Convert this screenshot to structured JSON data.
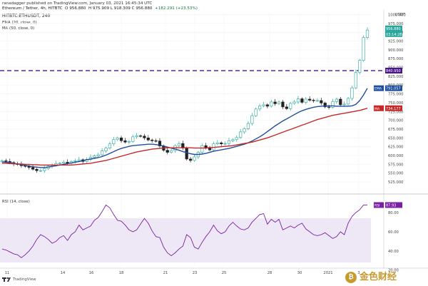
{
  "header": {
    "published": "ranadagger published on TradingView.com, January 03, 2021 16:45:34 UTC",
    "pair_line_prefix": "Ethereum / Tether, 4h, HITBTC",
    "ohlc_open_label": "O",
    "ohlc": "956.880",
    "change": "+182.291 (+23.53%)",
    "ohlc_rest": "H 975.909  L 918.309  C 956.880",
    "symbol": "HITBTC:ETHUSDT, 240",
    "ema_label": "EMA (20, close, 0)",
    "ma_label": "MA (50, close, 0)",
    "rsi_label": "RSI (14, close)",
    "usdt_label": "USDT"
  },
  "price_axis": {
    "ticks": [
      "1000.000",
      "975.000",
      "950.000",
      "925.000",
      "900.000",
      "875.000",
      "850.000",
      "825.000",
      "800.000",
      "775.000",
      "750.000",
      "725.000",
      "700.000",
      "675.000",
      "650.000",
      "625.000",
      "600.000",
      "575.000",
      "550.000",
      "525.000"
    ],
    "last_price_tag": "956.880",
    "countdown_tag": "03:14:28",
    "level_tag": "840.950",
    "ema_tag": "EMA",
    "ema_value": "791.057",
    "ma_tag": "MA",
    "ma_value": "734.177"
  },
  "rsi_axis": {
    "ticks": [
      "80.00",
      "60.00",
      "40.00",
      "20.00"
    ],
    "rsi_tag": "RSI",
    "rsi_value": "87.93"
  },
  "date_axis": {
    "ticks": [
      "11",
      "14",
      "16",
      "18",
      "21",
      "23",
      "25",
      "28",
      "30",
      "2021",
      "3"
    ]
  },
  "footer": {
    "brand": "TradingView"
  },
  "watermark": {
    "text": "金色财经"
  },
  "colors": {
    "up": "#26a69a",
    "down": "#222222",
    "ema": "#1f4e9c",
    "ma": "#c62828",
    "level": "#4a148c",
    "rsi": "#7b1fa2",
    "rsi_band": "#ede7f6"
  },
  "chart_data": [
    {
      "type": "candlestick",
      "title": "Ethereum / Tether, 4h, HITBTC",
      "ylim": [
        515,
        1005
      ],
      "horizontal_level": 840.95,
      "series": [
        {
          "name": "EMA (20, close, 0)",
          "values": [
            582,
            581,
            580,
            578,
            576,
            574,
            572,
            570,
            568,
            567,
            566,
            566,
            567,
            569,
            571,
            573,
            575,
            577,
            579,
            581,
            583,
            585,
            588,
            590,
            592,
            594,
            597,
            601,
            606,
            611,
            616,
            620,
            623,
            626,
            628,
            629,
            630,
            631,
            632,
            632,
            631,
            629,
            627,
            624,
            621,
            618,
            615,
            611,
            608,
            605,
            603,
            603,
            604,
            606,
            609,
            612,
            614,
            616,
            618,
            620,
            623,
            626,
            629,
            632,
            636,
            641,
            647,
            653,
            660,
            668,
            676,
            684,
            691,
            698,
            704,
            710,
            716,
            722,
            727,
            731,
            734,
            737,
            739,
            740,
            741,
            741,
            741,
            740,
            740,
            740,
            740,
            741,
            745,
            756,
            772,
            791
          ]
        },
        {
          "name": "MA (50, close, 0)",
          "values": [
            578,
            578,
            577,
            577,
            576,
            576,
            575,
            575,
            574,
            574,
            573,
            573,
            573,
            573,
            573,
            573,
            573,
            573,
            573,
            574,
            575,
            576,
            577,
            578,
            580,
            582,
            584,
            586,
            589,
            592,
            595,
            598,
            601,
            604,
            607,
            610,
            612,
            614,
            616,
            618,
            619,
            620,
            621,
            622,
            622,
            622,
            622,
            622,
            622,
            622,
            621,
            621,
            621,
            621,
            622,
            623,
            624,
            625,
            626,
            627,
            628,
            630,
            632,
            634,
            636,
            638,
            641,
            644,
            647,
            650,
            654,
            658,
            662,
            666,
            670,
            674,
            678,
            682,
            686,
            690,
            694,
            698,
            702,
            705,
            708,
            711,
            714,
            716,
            718,
            720,
            722,
            724,
            726,
            728,
            731,
            734
          ]
        }
      ],
      "candles_close": [
        585,
        583,
        580,
        576,
        575,
        571,
        569,
        566,
        561,
        557,
        557,
        563,
        570,
        572,
        577,
        578,
        581,
        578,
        583,
        585,
        588,
        583,
        589,
        595,
        599,
        602,
        613,
        621,
        633,
        645,
        650,
        642,
        638,
        640,
        653,
        656,
        655,
        650,
        644,
        642,
        641,
        627,
        615,
        609,
        614,
        628,
        634,
        621,
        590,
        586,
        596,
        609,
        628,
        623,
        616,
        633,
        636,
        633,
        634,
        642,
        645,
        651,
        667,
        676,
        691,
        713,
        732,
        741,
        744,
        740,
        752,
        747,
        752,
        738,
        733,
        748,
        752,
        761,
        751,
        760,
        757,
        756,
        756,
        749,
        738,
        737,
        753,
        760,
        744,
        746,
        762,
        792,
        836,
        870,
        935,
        956
      ]
    },
    {
      "type": "line",
      "title": "RSI (14, close)",
      "ylim": [
        25,
        95
      ],
      "series": [
        {
          "name": "RSI",
          "values": [
            42,
            41,
            39,
            37,
            36,
            33,
            36,
            40,
            45,
            52,
            57,
            55,
            52,
            48,
            50,
            54,
            56,
            51,
            57,
            60,
            67,
            62,
            64,
            66,
            72,
            75,
            81,
            88,
            85,
            78,
            72,
            71,
            67,
            62,
            60,
            62,
            68,
            74,
            69,
            61,
            55,
            54,
            44,
            38,
            35,
            38,
            42,
            45,
            57,
            54,
            44,
            42,
            49,
            55,
            60,
            67,
            61,
            58,
            60,
            66,
            70,
            66,
            63,
            62,
            64,
            70,
            74,
            78,
            79,
            68,
            73,
            70,
            73,
            62,
            64,
            66,
            64,
            67,
            69,
            63,
            60,
            57,
            56,
            57,
            59,
            56,
            53,
            55,
            60,
            57,
            69,
            76,
            80,
            83,
            88,
            88
          ]
        }
      ]
    }
  ]
}
